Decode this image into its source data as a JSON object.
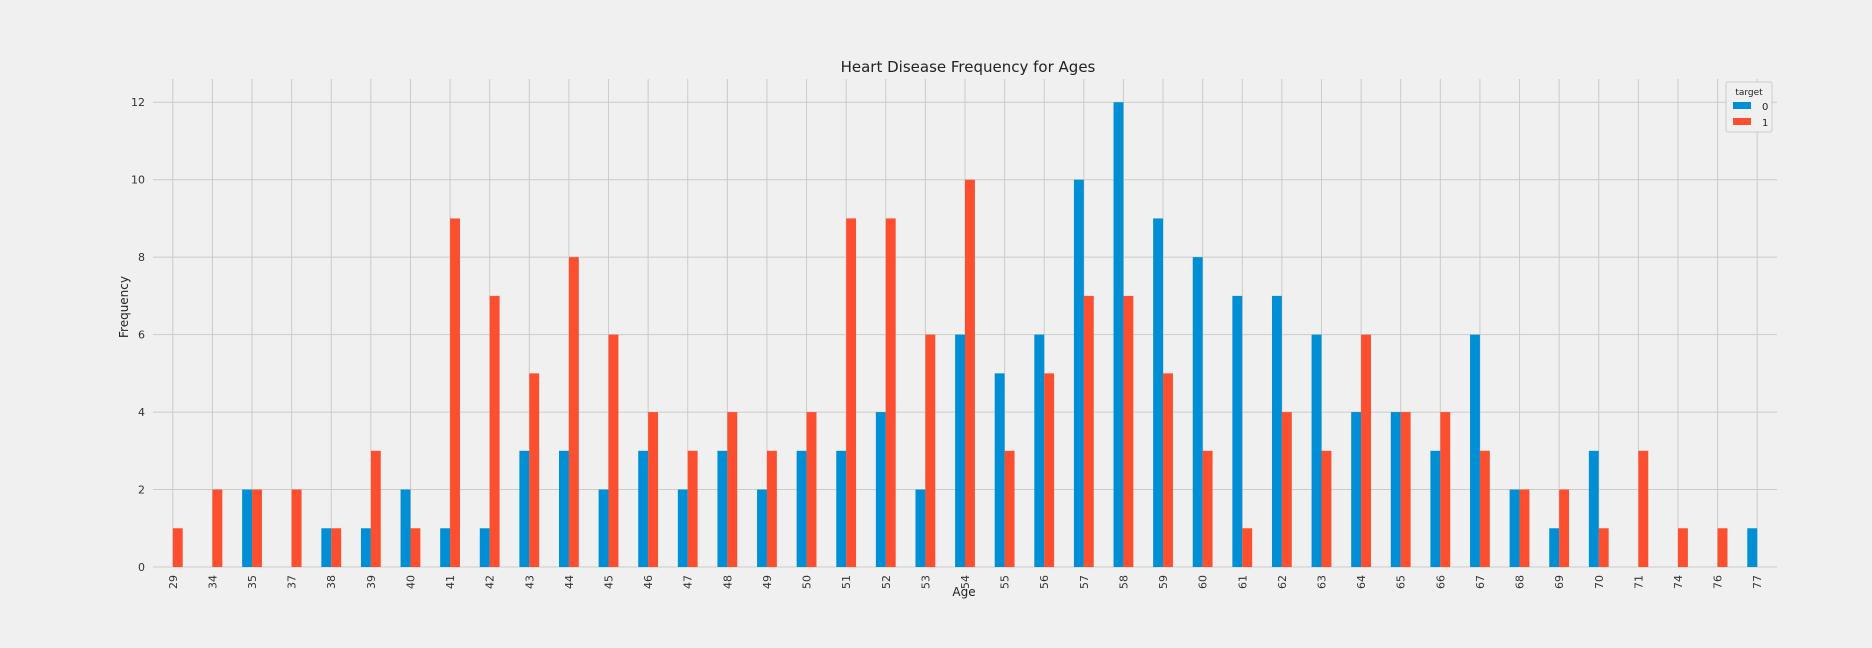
{
  "chart_data": {
    "type": "bar",
    "title": "Heart Disease Frequency for Ages",
    "xlabel": "Age",
    "ylabel": "Frequency",
    "ylim": [
      0,
      12.6
    ],
    "yticks": [
      0,
      2,
      4,
      6,
      8,
      10,
      12
    ],
    "grid": true,
    "legend": {
      "title": "target",
      "position": "top-right"
    },
    "categories": [
      "29",
      "34",
      "35",
      "37",
      "38",
      "39",
      "40",
      "41",
      "42",
      "43",
      "44",
      "45",
      "46",
      "47",
      "48",
      "49",
      "50",
      "51",
      "52",
      "53",
      "54",
      "55",
      "56",
      "57",
      "58",
      "59",
      "60",
      "61",
      "62",
      "63",
      "64",
      "65",
      "66",
      "67",
      "68",
      "69",
      "70",
      "71",
      "74",
      "76",
      "77"
    ],
    "series": [
      {
        "name": "0",
        "color": "#008fd5",
        "values": [
          0,
          0,
          2,
          0,
          1,
          1,
          2,
          1,
          1,
          3,
          3,
          2,
          3,
          2,
          3,
          2,
          3,
          3,
          4,
          2,
          6,
          5,
          6,
          10,
          12,
          9,
          8,
          7,
          7,
          6,
          4,
          4,
          3,
          6,
          2,
          1,
          3,
          0,
          0,
          0,
          1
        ]
      },
      {
        "name": "1",
        "color": "#fc4f30",
        "values": [
          1,
          2,
          2,
          2,
          1,
          3,
          1,
          9,
          7,
          5,
          8,
          6,
          4,
          3,
          4,
          3,
          4,
          9,
          9,
          6,
          10,
          3,
          5,
          7,
          7,
          5,
          3,
          1,
          4,
          3,
          6,
          4,
          4,
          3,
          2,
          2,
          1,
          3,
          1,
          1,
          0
        ]
      }
    ]
  }
}
